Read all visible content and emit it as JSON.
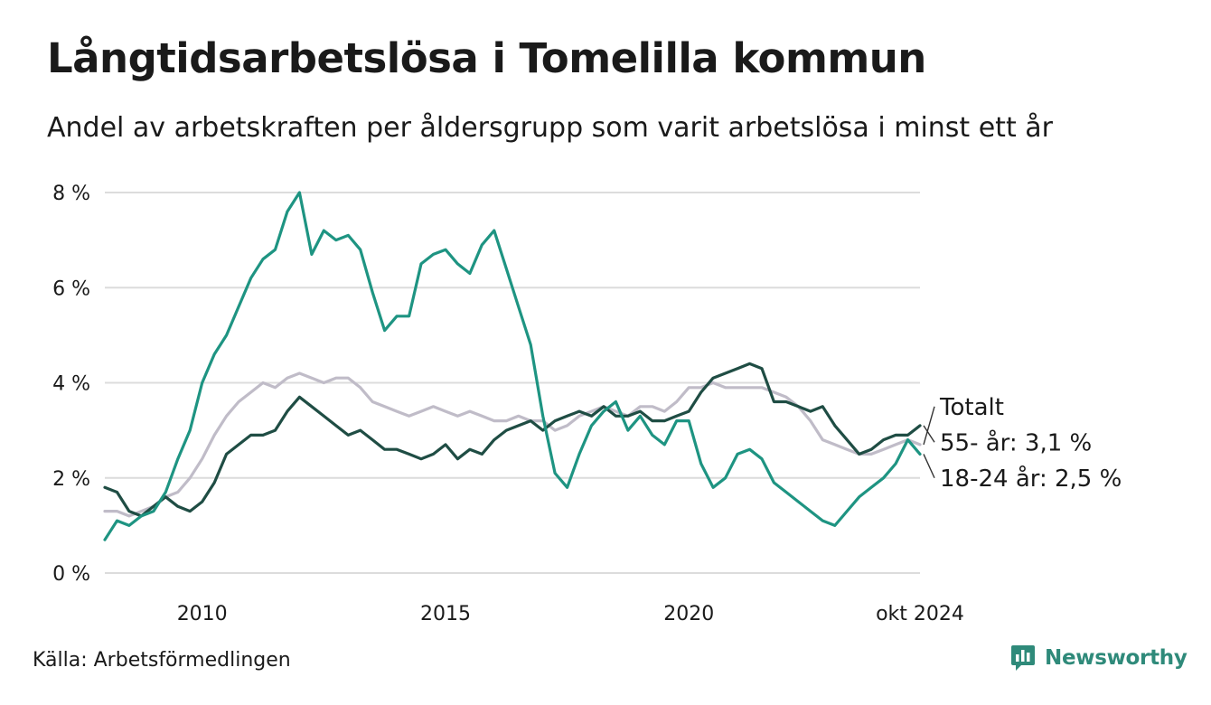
{
  "title": "Långtidsarbetslösa i Tomelilla kommun",
  "subtitle": "Andel av arbetskraften per åldersgrupp som varit arbetslösa i minst ett år",
  "source": "Källa: Arbetsförmedlingen",
  "brand": {
    "name": "Newsworthy",
    "icon": "newsworthy-logo-icon",
    "color": "#2f8a7a"
  },
  "chart_data": {
    "type": "line",
    "x_unit": "year (decimal, monthly data)",
    "x_range": [
      2008.0,
      2024.75
    ],
    "xticks": [
      {
        "x": 2010,
        "label": "2010"
      },
      {
        "x": 2015,
        "label": "2015"
      },
      {
        "x": 2020,
        "label": "2020"
      },
      {
        "x": 2024.75,
        "label": "okt 2024"
      }
    ],
    "ylim": [
      0,
      8
    ],
    "yticks": [
      {
        "y": 0,
        "label": "0 %"
      },
      {
        "y": 2,
        "label": "2 %"
      },
      {
        "y": 4,
        "label": "4 %"
      },
      {
        "y": 6,
        "label": "6 %"
      },
      {
        "y": 8,
        "label": "8 %"
      }
    ],
    "grid": true,
    "series": [
      {
        "name": "Totalt",
        "end_label": "Totalt",
        "color": "#c0bcc8",
        "points": [
          [
            2008.0,
            1.3
          ],
          [
            2008.25,
            1.3
          ],
          [
            2008.5,
            1.2
          ],
          [
            2008.75,
            1.3
          ],
          [
            2009.0,
            1.4
          ],
          [
            2009.25,
            1.6
          ],
          [
            2009.5,
            1.7
          ],
          [
            2009.75,
            2.0
          ],
          [
            2010.0,
            2.4
          ],
          [
            2010.25,
            2.9
          ],
          [
            2010.5,
            3.3
          ],
          [
            2010.75,
            3.6
          ],
          [
            2011.0,
            3.8
          ],
          [
            2011.25,
            4.0
          ],
          [
            2011.5,
            3.9
          ],
          [
            2011.75,
            4.1
          ],
          [
            2012.0,
            4.2
          ],
          [
            2012.25,
            4.1
          ],
          [
            2012.5,
            4.0
          ],
          [
            2012.75,
            4.1
          ],
          [
            2013.0,
            4.1
          ],
          [
            2013.25,
            3.9
          ],
          [
            2013.5,
            3.6
          ],
          [
            2013.75,
            3.5
          ],
          [
            2014.0,
            3.4
          ],
          [
            2014.25,
            3.3
          ],
          [
            2014.5,
            3.4
          ],
          [
            2014.75,
            3.5
          ],
          [
            2015.0,
            3.4
          ],
          [
            2015.25,
            3.3
          ],
          [
            2015.5,
            3.4
          ],
          [
            2015.75,
            3.3
          ],
          [
            2016.0,
            3.2
          ],
          [
            2016.25,
            3.2
          ],
          [
            2016.5,
            3.3
          ],
          [
            2016.75,
            3.2
          ],
          [
            2017.0,
            3.2
          ],
          [
            2017.25,
            3.0
          ],
          [
            2017.5,
            3.1
          ],
          [
            2017.75,
            3.3
          ],
          [
            2018.0,
            3.4
          ],
          [
            2018.25,
            3.5
          ],
          [
            2018.5,
            3.4
          ],
          [
            2018.75,
            3.3
          ],
          [
            2019.0,
            3.5
          ],
          [
            2019.25,
            3.5
          ],
          [
            2019.5,
            3.4
          ],
          [
            2019.75,
            3.6
          ],
          [
            2020.0,
            3.9
          ],
          [
            2020.25,
            3.9
          ],
          [
            2020.5,
            4.0
          ],
          [
            2020.75,
            3.9
          ],
          [
            2021.0,
            3.9
          ],
          [
            2021.25,
            3.9
          ],
          [
            2021.5,
            3.9
          ],
          [
            2021.75,
            3.8
          ],
          [
            2022.0,
            3.7
          ],
          [
            2022.25,
            3.5
          ],
          [
            2022.5,
            3.2
          ],
          [
            2022.75,
            2.8
          ],
          [
            2023.0,
            2.7
          ],
          [
            2023.25,
            2.6
          ],
          [
            2023.5,
            2.5
          ],
          [
            2023.75,
            2.5
          ],
          [
            2024.0,
            2.6
          ],
          [
            2024.25,
            2.7
          ],
          [
            2024.5,
            2.8
          ],
          [
            2024.75,
            2.7
          ]
        ]
      },
      {
        "name": "55- år",
        "end_label": "55- år: 3,1 %",
        "color": "#1f4d44",
        "points": [
          [
            2008.0,
            1.8
          ],
          [
            2008.25,
            1.7
          ],
          [
            2008.5,
            1.3
          ],
          [
            2008.75,
            1.2
          ],
          [
            2009.0,
            1.4
          ],
          [
            2009.25,
            1.6
          ],
          [
            2009.5,
            1.4
          ],
          [
            2009.75,
            1.3
          ],
          [
            2010.0,
            1.5
          ],
          [
            2010.25,
            1.9
          ],
          [
            2010.5,
            2.5
          ],
          [
            2010.75,
            2.7
          ],
          [
            2011.0,
            2.9
          ],
          [
            2011.25,
            2.9
          ],
          [
            2011.5,
            3.0
          ],
          [
            2011.75,
            3.4
          ],
          [
            2012.0,
            3.7
          ],
          [
            2012.25,
            3.5
          ],
          [
            2012.5,
            3.3
          ],
          [
            2012.75,
            3.1
          ],
          [
            2013.0,
            2.9
          ],
          [
            2013.25,
            3.0
          ],
          [
            2013.5,
            2.8
          ],
          [
            2013.75,
            2.6
          ],
          [
            2014.0,
            2.6
          ],
          [
            2014.25,
            2.5
          ],
          [
            2014.5,
            2.4
          ],
          [
            2014.75,
            2.5
          ],
          [
            2015.0,
            2.7
          ],
          [
            2015.25,
            2.4
          ],
          [
            2015.5,
            2.6
          ],
          [
            2015.75,
            2.5
          ],
          [
            2016.0,
            2.8
          ],
          [
            2016.25,
            3.0
          ],
          [
            2016.5,
            3.1
          ],
          [
            2016.75,
            3.2
          ],
          [
            2017.0,
            3.0
          ],
          [
            2017.25,
            3.2
          ],
          [
            2017.5,
            3.3
          ],
          [
            2017.75,
            3.4
          ],
          [
            2018.0,
            3.3
          ],
          [
            2018.25,
            3.5
          ],
          [
            2018.5,
            3.3
          ],
          [
            2018.75,
            3.3
          ],
          [
            2019.0,
            3.4
          ],
          [
            2019.25,
            3.2
          ],
          [
            2019.5,
            3.2
          ],
          [
            2019.75,
            3.3
          ],
          [
            2020.0,
            3.4
          ],
          [
            2020.25,
            3.8
          ],
          [
            2020.5,
            4.1
          ],
          [
            2020.75,
            4.2
          ],
          [
            2021.0,
            4.3
          ],
          [
            2021.25,
            4.4
          ],
          [
            2021.5,
            4.3
          ],
          [
            2021.75,
            3.6
          ],
          [
            2022.0,
            3.6
          ],
          [
            2022.25,
            3.5
          ],
          [
            2022.5,
            3.4
          ],
          [
            2022.75,
            3.5
          ],
          [
            2023.0,
            3.1
          ],
          [
            2023.25,
            2.8
          ],
          [
            2023.5,
            2.5
          ],
          [
            2023.75,
            2.6
          ],
          [
            2024.0,
            2.8
          ],
          [
            2024.25,
            2.9
          ],
          [
            2024.5,
            2.9
          ],
          [
            2024.75,
            3.1
          ]
        ]
      },
      {
        "name": "18-24 år",
        "end_label": "18-24 år: 2,5 %",
        "color": "#1e9482",
        "points": [
          [
            2008.0,
            0.7
          ],
          [
            2008.25,
            1.1
          ],
          [
            2008.5,
            1.0
          ],
          [
            2008.75,
            1.2
          ],
          [
            2009.0,
            1.3
          ],
          [
            2009.25,
            1.7
          ],
          [
            2009.5,
            2.4
          ],
          [
            2009.75,
            3.0
          ],
          [
            2010.0,
            4.0
          ],
          [
            2010.25,
            4.6
          ],
          [
            2010.5,
            5.0
          ],
          [
            2010.75,
            5.6
          ],
          [
            2011.0,
            6.2
          ],
          [
            2011.25,
            6.6
          ],
          [
            2011.5,
            6.8
          ],
          [
            2011.75,
            7.6
          ],
          [
            2012.0,
            8.0
          ],
          [
            2012.25,
            6.7
          ],
          [
            2012.5,
            7.2
          ],
          [
            2012.75,
            7.0
          ],
          [
            2013.0,
            7.1
          ],
          [
            2013.25,
            6.8
          ],
          [
            2013.5,
            5.9
          ],
          [
            2013.75,
            5.1
          ],
          [
            2014.0,
            5.4
          ],
          [
            2014.25,
            5.4
          ],
          [
            2014.5,
            6.5
          ],
          [
            2014.75,
            6.7
          ],
          [
            2015.0,
            6.8
          ],
          [
            2015.25,
            6.5
          ],
          [
            2015.5,
            6.3
          ],
          [
            2015.75,
            6.9
          ],
          [
            2016.0,
            7.2
          ],
          [
            2016.25,
            6.4
          ],
          [
            2016.5,
            5.6
          ],
          [
            2016.75,
            4.8
          ],
          [
            2017.0,
            3.3
          ],
          [
            2017.25,
            2.1
          ],
          [
            2017.5,
            1.8
          ],
          [
            2017.75,
            2.5
          ],
          [
            2018.0,
            3.1
          ],
          [
            2018.25,
            3.4
          ],
          [
            2018.5,
            3.6
          ],
          [
            2018.75,
            3.0
          ],
          [
            2019.0,
            3.3
          ],
          [
            2019.25,
            2.9
          ],
          [
            2019.5,
            2.7
          ],
          [
            2019.75,
            3.2
          ],
          [
            2020.0,
            3.2
          ],
          [
            2020.25,
            2.3
          ],
          [
            2020.5,
            1.8
          ],
          [
            2020.75,
            2.0
          ],
          [
            2021.0,
            2.5
          ],
          [
            2021.25,
            2.6
          ],
          [
            2021.5,
            2.4
          ],
          [
            2021.75,
            1.9
          ],
          [
            2022.0,
            1.7
          ],
          [
            2022.25,
            1.5
          ],
          [
            2022.5,
            1.3
          ],
          [
            2022.75,
            1.1
          ],
          [
            2023.0,
            1.0
          ],
          [
            2023.25,
            1.3
          ],
          [
            2023.5,
            1.6
          ],
          [
            2023.75,
            1.8
          ],
          [
            2024.0,
            2.0
          ],
          [
            2024.25,
            2.3
          ],
          [
            2024.5,
            2.8
          ],
          [
            2024.75,
            2.5
          ]
        ]
      }
    ]
  }
}
